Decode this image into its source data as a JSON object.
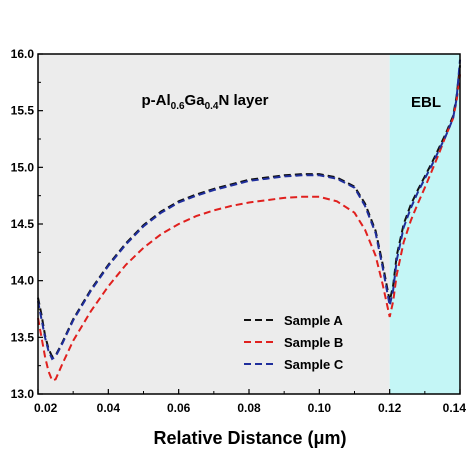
{
  "chart_data": {
    "type": "line",
    "xlabel": "Relative Distance (μm)",
    "ylabel": "",
    "xlim": [
      0.02,
      0.14
    ],
    "ylim": [
      13.0,
      16.0
    ],
    "xticks": [
      "0.02",
      "0.04",
      "0.06",
      "0.08",
      "0.10",
      "0.12",
      "0.14"
    ],
    "yticks": [
      "13.0",
      "13.5",
      "14.0",
      "14.5",
      "15.0",
      "15.5",
      "16.0"
    ],
    "regions": [
      {
        "label_main": "p-Al",
        "label_sub1": "0.6",
        "label_mid": "Ga",
        "label_sub2": "0.4",
        "label_end": "N layer",
        "x_start": 0.02,
        "x_end": 0.12,
        "color": "#ececec"
      },
      {
        "label": "EBL",
        "x_start": 0.12,
        "x_end": 0.14,
        "color": "#c4f6f6"
      }
    ],
    "legend_position": "lower-right",
    "series": [
      {
        "name": "Sample A",
        "color": "#111111",
        "x": [
          0.02,
          0.021,
          0.022,
          0.023,
          0.024,
          0.025,
          0.027,
          0.03,
          0.035,
          0.04,
          0.045,
          0.05,
          0.055,
          0.06,
          0.065,
          0.07,
          0.075,
          0.08,
          0.085,
          0.09,
          0.095,
          0.1,
          0.105,
          0.11,
          0.113,
          0.116,
          0.118,
          0.12,
          0.121,
          0.122,
          0.124,
          0.126,
          0.128,
          0.13,
          0.132,
          0.134,
          0.136,
          0.138,
          0.139,
          0.14
        ],
        "values": [
          13.85,
          13.7,
          13.52,
          13.4,
          13.33,
          13.34,
          13.46,
          13.66,
          13.92,
          14.14,
          14.33,
          14.49,
          14.61,
          14.7,
          14.76,
          14.81,
          14.85,
          14.89,
          14.91,
          14.93,
          14.94,
          14.94,
          14.91,
          14.83,
          14.68,
          14.44,
          14.15,
          13.82,
          13.96,
          14.22,
          14.5,
          14.67,
          14.8,
          14.92,
          15.04,
          15.17,
          15.3,
          15.45,
          15.62,
          15.9
        ]
      },
      {
        "name": "Sample B",
        "color": "#e0201e",
        "x": [
          0.02,
          0.021,
          0.022,
          0.023,
          0.024,
          0.025,
          0.027,
          0.03,
          0.035,
          0.04,
          0.045,
          0.05,
          0.055,
          0.06,
          0.065,
          0.07,
          0.075,
          0.08,
          0.085,
          0.09,
          0.095,
          0.1,
          0.105,
          0.11,
          0.113,
          0.116,
          0.118,
          0.12,
          0.121,
          0.122,
          0.124,
          0.126,
          0.128,
          0.13,
          0.132,
          0.134,
          0.136,
          0.138,
          0.139,
          0.14
        ],
        "values": [
          13.67,
          13.5,
          13.33,
          13.2,
          13.12,
          13.13,
          13.27,
          13.47,
          13.73,
          13.95,
          14.14,
          14.29,
          14.41,
          14.5,
          14.57,
          14.62,
          14.66,
          14.69,
          14.71,
          14.73,
          14.74,
          14.74,
          14.7,
          14.6,
          14.45,
          14.22,
          13.97,
          13.68,
          13.82,
          14.05,
          14.34,
          14.53,
          14.68,
          14.82,
          14.97,
          15.12,
          15.28,
          15.43,
          15.58,
          15.82
        ]
      },
      {
        "name": "Sample C",
        "color": "#1f2e9c",
        "x": [
          0.02,
          0.021,
          0.022,
          0.023,
          0.024,
          0.025,
          0.027,
          0.03,
          0.035,
          0.04,
          0.045,
          0.05,
          0.055,
          0.06,
          0.065,
          0.07,
          0.075,
          0.08,
          0.085,
          0.09,
          0.095,
          0.1,
          0.105,
          0.11,
          0.113,
          0.116,
          0.118,
          0.12,
          0.121,
          0.122,
          0.124,
          0.126,
          0.128,
          0.13,
          0.132,
          0.134,
          0.136,
          0.138,
          0.139,
          0.14
        ],
        "values": [
          13.82,
          13.66,
          13.5,
          13.38,
          13.31,
          13.33,
          13.45,
          13.65,
          13.91,
          14.13,
          14.32,
          14.48,
          14.6,
          14.69,
          14.75,
          14.8,
          14.84,
          14.88,
          14.9,
          14.92,
          14.93,
          14.93,
          14.9,
          14.82,
          14.66,
          14.42,
          14.12,
          13.78,
          13.92,
          14.18,
          14.47,
          14.64,
          14.78,
          14.9,
          15.02,
          15.15,
          15.28,
          15.43,
          15.6,
          15.95
        ]
      }
    ]
  }
}
